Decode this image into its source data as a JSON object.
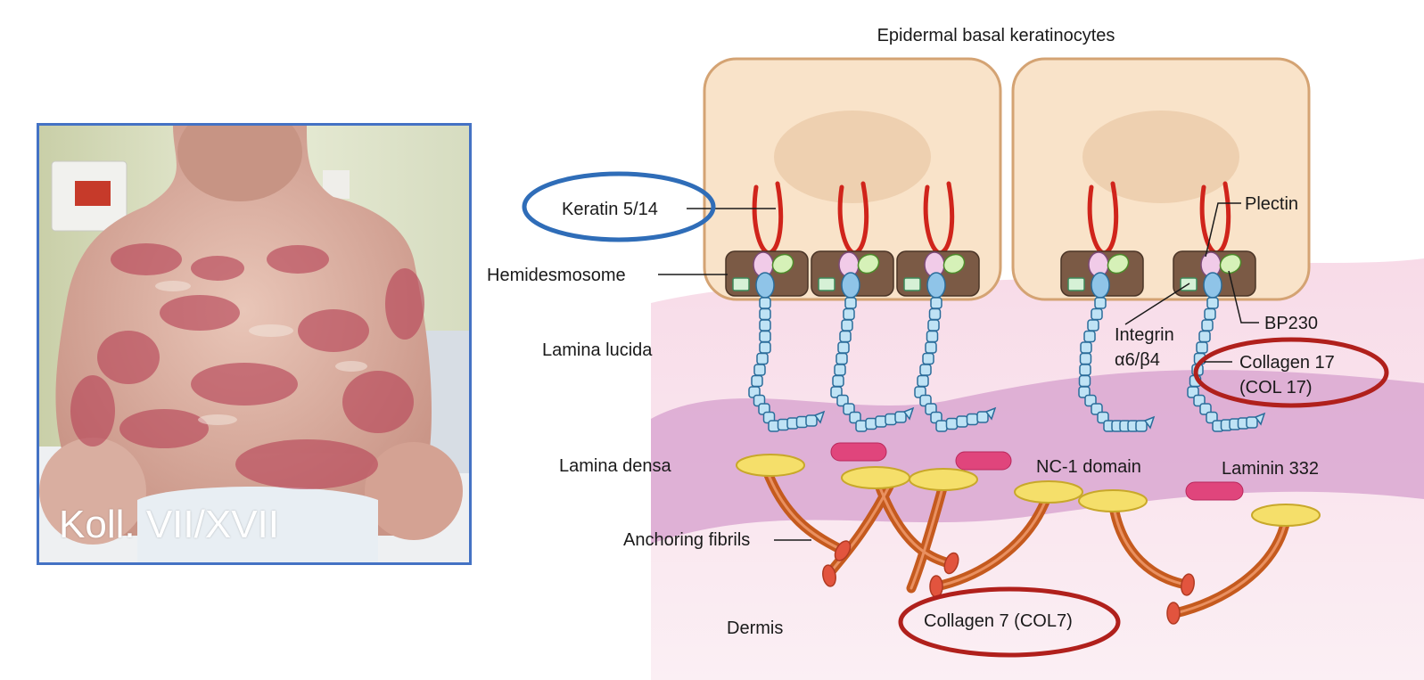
{
  "photo": {
    "caption": "Koll. VII/XVII"
  },
  "diagram": {
    "title": "Epidermal basal keratinocytes",
    "labels": {
      "keratin": "Keratin 5/14",
      "hemidesmosome": "Hemidesmosome",
      "lamina_lucida": "Lamina lucida",
      "lamina_densa": "Lamina densa",
      "anchoring_fibrils": "Anchoring fibrils",
      "dermis": "Dermis",
      "plectin": "Plectin",
      "bp230": "BP230",
      "integrin_line1": "Integrin",
      "integrin_line2": "α6/β4",
      "col17_line1": "Collagen 17",
      "col17_line2": "(COL 17)",
      "nc1": "NC-1 domain",
      "laminin": "Laminin 332",
      "col7": "Collagen 7 (COL7)"
    },
    "colors": {
      "cell_fill": "#f9e3c9",
      "cell_stroke": "#d4a373",
      "nucleus": "#eed0b0",
      "hemidesmosome": "#7b5a45",
      "keratin": "#d0241b",
      "collagen17": "#bfe3f5",
      "lamina_lucida": "#f5cfe0",
      "lamina_densa": "#c98bc2",
      "laminin": "#e0457c",
      "nc1": "#f5df6a",
      "anchoring_fibril": "#c55a1e",
      "highlight_blue": "#2f6db8",
      "highlight_red": "#b0201c",
      "photo_border": "#4472c4"
    }
  }
}
